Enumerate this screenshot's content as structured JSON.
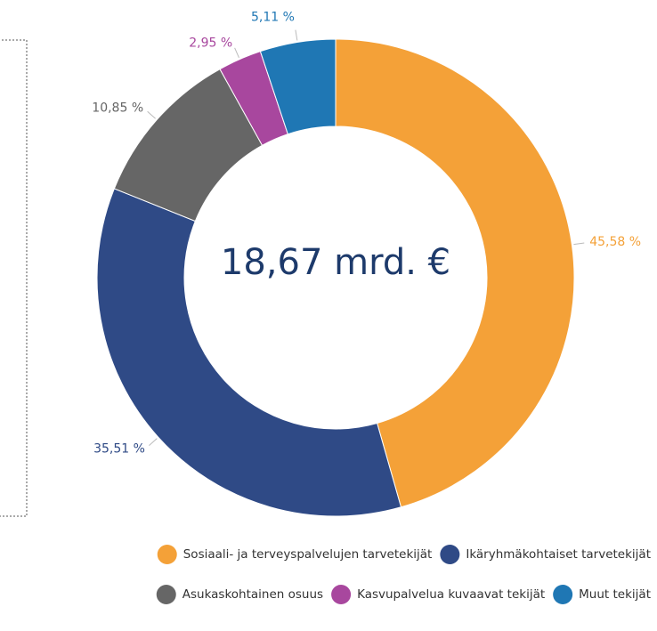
{
  "chart_data": {
    "type": "donut",
    "center_label": "18,67 mrd. €",
    "categories": [
      "Sosiaali- ja terveyspalvelujen tarvetekijät",
      "Ikäryhmäkohtaiset tarvetekijät",
      "Asukaskohtainen osuus",
      "Kasvupalvelua kuvaavat tekijät",
      "Muut tekijät"
    ],
    "values": [
      45.58,
      35.51,
      10.85,
      2.95,
      5.11
    ],
    "value_labels": [
      "45,58 %",
      "35,51 %",
      "10,85 %",
      "2,95 %",
      "5,11 %"
    ],
    "colors": [
      "#f4a138",
      "#2f4a86",
      "#666666",
      "#a8479e",
      "#1f77b4"
    ]
  }
}
